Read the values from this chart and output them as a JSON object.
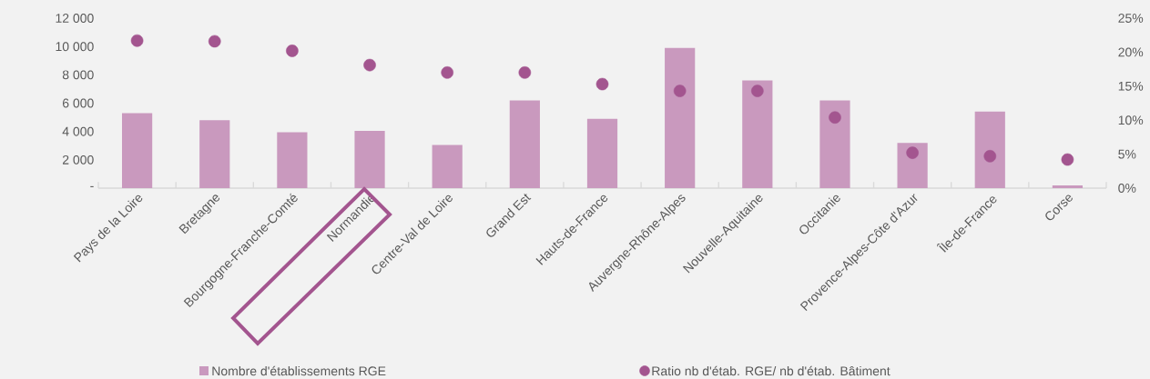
{
  "chart_data": {
    "type": "bar",
    "categories": [
      "Pays de la Loire",
      "Bretagne",
      "Bourgogne-Franche-Comté",
      "Normandie",
      "Centre-Val de Loire",
      "Grand Est",
      "Hauts-de-France",
      "Auvergne-Rhône-Alpes",
      "Nouvelle-Aquitaine",
      "Occitanie",
      "Provence-Alpes-Côte d'Azur",
      "Île-de-France",
      "Corse"
    ],
    "series": [
      {
        "name": "Nombre d'établissements RGE",
        "color": "#c999be",
        "values": [
          5300,
          4800,
          3950,
          4050,
          3050,
          6200,
          4900,
          9900,
          7600,
          6200,
          3200,
          5400,
          200
        ]
      },
      {
        "name": "Ratio nb d'étab. RGE/ nb d'étab. Bâtiment",
        "type": "scatter",
        "axis": "y2",
        "color": "#a3558f",
        "values": [
          21.7,
          21.6,
          20.2,
          18.1,
          17.0,
          17.0,
          15.3,
          14.3,
          14.3,
          10.4,
          5.2,
          4.7,
          4.2
        ]
      }
    ],
    "ylim": [
      0,
      12000
    ],
    "yticks": [
      {
        "value": 0,
        "label": "-"
      },
      {
        "value": 2000,
        "label": "2 000"
      },
      {
        "value": 4000,
        "label": "4 000"
      },
      {
        "value": 6000,
        "label": "6 000"
      },
      {
        "value": 8000,
        "label": "8 000"
      },
      {
        "value": 10000,
        "label": "10 000"
      },
      {
        "value": 12000,
        "label": "12 000"
      }
    ],
    "y2lim": [
      0,
      25
    ],
    "y2ticks": [
      {
        "value": 0,
        "label": "0%"
      },
      {
        "value": 5,
        "label": "5%"
      },
      {
        "value": 10,
        "label": "10%"
      },
      {
        "value": 15,
        "label": "15%"
      },
      {
        "value": 20,
        "label": "20%"
      },
      {
        "value": 25,
        "label": "25%"
      }
    ],
    "legend": "bottom",
    "marker": "circle",
    "grid": false
  }
}
